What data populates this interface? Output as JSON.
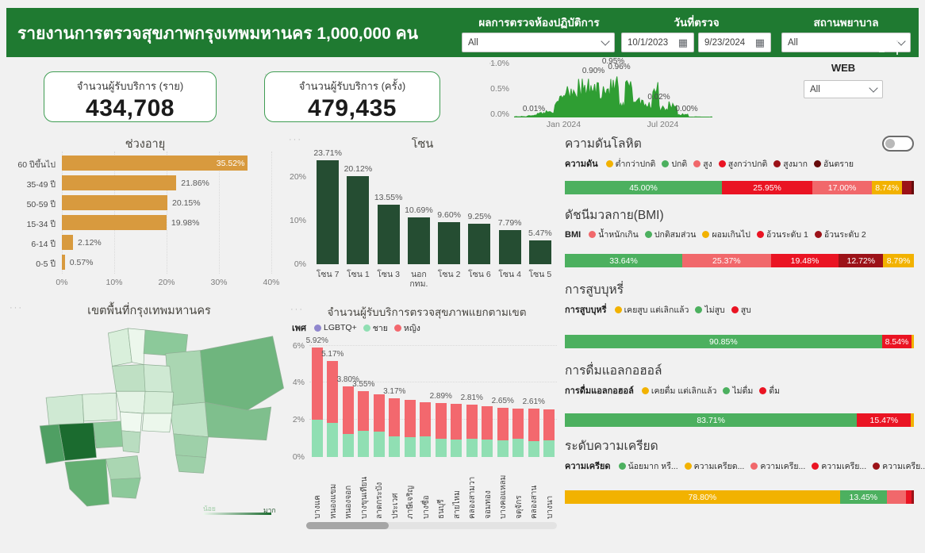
{
  "ui": {
    "header": {
      "title": "รายงานการตรวจสุขภาพกรุงเทพมหานคร 1,000,000 คน",
      "lab_filter": {
        "label": "ผลการตรวจห้องปฏิบัติการ",
        "value": "All"
      },
      "date_filter": {
        "label": "วันที่ตรวจ",
        "start": "10/1/2023",
        "end": "9/23/2024"
      },
      "hospital_filter": {
        "label": "สถานพยาบาล",
        "value": "All"
      }
    },
    "kpis": [
      {
        "label": "จำนวนผู้รับบริการ (ราย)",
        "value": "434,708"
      },
      {
        "label": "จำนวนผู้รับบริการ (ครั้ง)",
        "value": "479,435"
      }
    ],
    "web_filter": {
      "label": "WEB",
      "value": "All"
    },
    "map": {
      "title": "เขตพื้นที่กรุงเทพมหานคร",
      "legend_min": "น้อย",
      "legend_max": "มาก"
    }
  },
  "chart_data": [
    {
      "id": "trend",
      "type": "area",
      "title": "",
      "y_ticks": [
        "1.0%",
        "0.5%",
        "0.0%"
      ],
      "x_ticks": [
        "Jan 2024",
        "Jul 2024"
      ],
      "ylim": [
        0,
        1.0
      ],
      "color": "#2f9e33",
      "labeled_points": [
        {
          "label": "0.01%",
          "t": 0.1,
          "v": 0.08
        },
        {
          "label": "0.90%",
          "t": 0.4,
          "v": 0.8
        },
        {
          "label": "0.95%",
          "t": 0.5,
          "v": 0.99
        },
        {
          "label": "0.96%",
          "t": 0.53,
          "v": 0.88
        },
        {
          "label": "0.02%",
          "t": 0.73,
          "v": 0.3
        },
        {
          "label": "0.00%",
          "t": 0.87,
          "v": 0.08
        }
      ]
    },
    {
      "id": "age",
      "type": "bar-horizontal",
      "title": "ช่วงอายุ",
      "categories": [
        "60 ปีขึ้นไป",
        "35-49 ปี",
        "50-59 ปี",
        "15-34 ปี",
        "6-14 ปี",
        "0-5 ปี"
      ],
      "values": [
        35.52,
        21.86,
        20.15,
        19.98,
        2.12,
        0.57
      ],
      "labels": [
        "35.52%",
        "21.86%",
        "20.15%",
        "19.98%",
        "2.12%",
        "0.57%"
      ],
      "label_inside": [
        true,
        false,
        false,
        false,
        false,
        false
      ],
      "x_ticks": [
        "0%",
        "10%",
        "20%",
        "30%",
        "40%"
      ],
      "xlim": [
        0,
        40
      ],
      "color": "#d89a3e"
    },
    {
      "id": "zone",
      "type": "bar-vertical",
      "title": "โซน",
      "categories": [
        "โซน 7",
        "โซน 1",
        "โซน 3",
        "นอก กทม.",
        "โซน 2",
        "โซน 6",
        "โซน 4",
        "โซน 5"
      ],
      "values": [
        23.71,
        20.12,
        13.55,
        10.69,
        9.6,
        9.25,
        7.79,
        5.47
      ],
      "labels": [
        "23.71%",
        "20.12%",
        "13.55%",
        "10.69%",
        "9.60%",
        "9.25%",
        "7.79%",
        "5.47%"
      ],
      "y_ticks": [
        {
          "label": "0%",
          "value": 0
        },
        {
          "label": "10%",
          "value": 10
        },
        {
          "label": "20%",
          "value": 20
        }
      ],
      "ylim": [
        0,
        24.5
      ],
      "color": "#254d32"
    },
    {
      "id": "district",
      "type": "stacked-bar-vertical",
      "title": "จำนวนผู้รับบริการตรวจสุขภาพแยกตามเขต",
      "legend_title": "เพศ",
      "legend": [
        {
          "name": "LGBTQ+",
          "color": "#9087ce"
        },
        {
          "name": "ชาย",
          "color": "#90dfb3"
        },
        {
          "name": "หญิง",
          "color": "#f3686e"
        }
      ],
      "categories": [
        "บางแค",
        "หนองแขม",
        "หนองจอก",
        "บางขุนเทียน",
        "ลาดกระบัง",
        "ประเวศ",
        "ภาษีเจริญ",
        "บางซื่อ",
        "ธนบุรี",
        "สายไหม",
        "คลองสามวา",
        "จอมทอง",
        "บางคอแหลม",
        "จตุจักร",
        "คลองสาน",
        "บางนา"
      ],
      "series": [
        {
          "name": "ชาย",
          "color": "#90dfb3",
          "values": [
            2.0,
            1.85,
            1.25,
            1.4,
            1.35,
            1.12,
            1.05,
            1.1,
            0.97,
            0.95,
            1.0,
            0.95,
            0.92,
            1.0,
            0.85,
            0.9
          ]
        },
        {
          "name": "หญิง",
          "color": "#f3686e",
          "values": [
            3.92,
            3.32,
            2.55,
            2.15,
            2.05,
            2.05,
            2.03,
            1.85,
            1.92,
            1.91,
            1.81,
            1.8,
            1.73,
            1.63,
            1.76,
            1.65
          ]
        }
      ],
      "totals_labels": [
        "5.92%",
        "5.17%",
        "3.80%",
        "3.55%",
        "3.17%",
        "2.89%",
        "2.81%",
        "2.65%",
        "2.61%"
      ],
      "label_indices": [
        0,
        1,
        2,
        3,
        5,
        8,
        10,
        12,
        14
      ],
      "y_ticks": [
        {
          "label": "0%",
          "value": 0
        },
        {
          "label": "2%",
          "value": 2
        },
        {
          "label": "4%",
          "value": 4
        },
        {
          "label": "6%",
          "value": 6
        }
      ],
      "ylim": [
        0,
        6.5
      ]
    },
    {
      "id": "blood-pressure",
      "type": "stacked-bar-100",
      "title": "ความดันโลหิต",
      "legend_title": "ความดัน",
      "legend": [
        {
          "name": "ต่ำกว่าปกติ",
          "color": "#f2b200"
        },
        {
          "name": "ปกติ",
          "color": "#4cb05f"
        },
        {
          "name": "สูง",
          "color": "#f1686b"
        },
        {
          "name": "สูงกว่าปกติ",
          "color": "#ea1423"
        },
        {
          "name": "สูงมาก",
          "color": "#9c1218"
        },
        {
          "name": "อันตราย",
          "color": "#660b0b"
        }
      ],
      "segments": [
        {
          "name": "ปกติ",
          "value": 45.0,
          "label": "45.00%",
          "color": "#4cb05f"
        },
        {
          "name": "สูงกว่าปกติ",
          "value": 25.95,
          "label": "25.95%",
          "color": "#ea1423"
        },
        {
          "name": "สูง",
          "value": 17.0,
          "label": "17.00%",
          "color": "#f1686b"
        },
        {
          "name": "ต่ำกว่าปกติ",
          "value": 8.74,
          "label": "8.74%",
          "color": "#f2b200"
        },
        {
          "name": "สูงมาก",
          "value": 2.56,
          "label": "",
          "color": "#9c1218"
        },
        {
          "name": "อันตราย",
          "value": 0.75,
          "label": "",
          "color": "#660b0b"
        }
      ]
    },
    {
      "id": "bmi",
      "type": "stacked-bar-100",
      "title": "ดัชนีมวลกาย(BMI)",
      "legend_title": "BMI",
      "legend": [
        {
          "name": "น้ำหนักเกิน",
          "color": "#f1686b"
        },
        {
          "name": "ปกติสมส่วน",
          "color": "#4cb05f"
        },
        {
          "name": "ผอมเกินไป",
          "color": "#f2b200"
        },
        {
          "name": "อ้วนระดับ 1",
          "color": "#ea1423"
        },
        {
          "name": "อ้วนระดับ 2",
          "color": "#9c1218"
        }
      ],
      "segments": [
        {
          "name": "ปกติสมส่วน",
          "value": 33.64,
          "label": "33.64%",
          "color": "#4cb05f"
        },
        {
          "name": "น้ำหนักเกิน",
          "value": 25.37,
          "label": "25.37%",
          "color": "#f1686b"
        },
        {
          "name": "อ้วนระดับ 1",
          "value": 19.48,
          "label": "19.48%",
          "color": "#ea1423"
        },
        {
          "name": "อ้วนระดับ 2",
          "value": 12.72,
          "label": "12.72%",
          "color": "#9c1218"
        },
        {
          "name": "ผอมเกินไป",
          "value": 8.79,
          "label": "8.79%",
          "color": "#f2b200"
        }
      ]
    },
    {
      "id": "smoking",
      "type": "stacked-bar-100",
      "title": "การสูบบุหรี่",
      "legend_title": "การสูบบุหรี่",
      "legend": [
        {
          "name": "เคยสูบ แต่เลิกแล้ว",
          "color": "#f2b200"
        },
        {
          "name": "ไม่สูบ",
          "color": "#4cb05f"
        },
        {
          "name": "สูบ",
          "color": "#ea1423"
        }
      ],
      "segments": [
        {
          "name": "ไม่สูบ",
          "value": 90.85,
          "label": "90.85%",
          "color": "#4cb05f"
        },
        {
          "name": "สูบ",
          "value": 8.54,
          "label": "8.54%",
          "color": "#ea1423"
        },
        {
          "name": "เคยสูบ แต่เลิกแล้ว",
          "value": 0.61,
          "label": "",
          "color": "#f2b200"
        }
      ]
    },
    {
      "id": "alcohol",
      "type": "stacked-bar-100",
      "title": "การดื่มแอลกอฮอล์",
      "legend_title": "การดื่มแอลกอฮอล์",
      "legend": [
        {
          "name": "เคยดื่ม แต่เลิกแล้ว",
          "color": "#f2b200"
        },
        {
          "name": "ไม่ดื่ม",
          "color": "#4cb05f"
        },
        {
          "name": "ดื่ม",
          "color": "#ea1423"
        }
      ],
      "segments": [
        {
          "name": "ไม่ดื่ม",
          "value": 83.71,
          "label": "83.71%",
          "color": "#4cb05f"
        },
        {
          "name": "ดื่ม",
          "value": 15.47,
          "label": "15.47%",
          "color": "#ea1423"
        },
        {
          "name": "เคยดื่ม แต่เลิกแล้ว",
          "value": 0.82,
          "label": "",
          "color": "#f2b200"
        }
      ]
    },
    {
      "id": "stress",
      "type": "stacked-bar-100",
      "title": "ระดับความเครียด",
      "legend_title": "ความเครียด",
      "legend": [
        {
          "name": "น้อยมาก หรื...",
          "color": "#4cb05f"
        },
        {
          "name": "ความเครียด...",
          "color": "#f2b200"
        },
        {
          "name": "ความเครีย...",
          "color": "#f1686b"
        },
        {
          "name": "ความเครีย...",
          "color": "#ea1423"
        },
        {
          "name": "ความเครีย...",
          "color": "#9c1218"
        }
      ],
      "segments": [
        {
          "name": "ความเครียด...",
          "value": 78.8,
          "label": "78.80%",
          "color": "#f2b200"
        },
        {
          "name": "น้อยมาก หรื...",
          "value": 13.45,
          "label": "13.45%",
          "color": "#4cb05f"
        },
        {
          "name": "ความเครีย...",
          "value": 5.5,
          "label": "",
          "color": "#f1686b"
        },
        {
          "name": "ความเครีย...",
          "value": 1.5,
          "label": "",
          "color": "#ea1423"
        },
        {
          "name": "ความเครีย...",
          "value": 0.75,
          "label": "",
          "color": "#9c1218"
        }
      ]
    }
  ]
}
